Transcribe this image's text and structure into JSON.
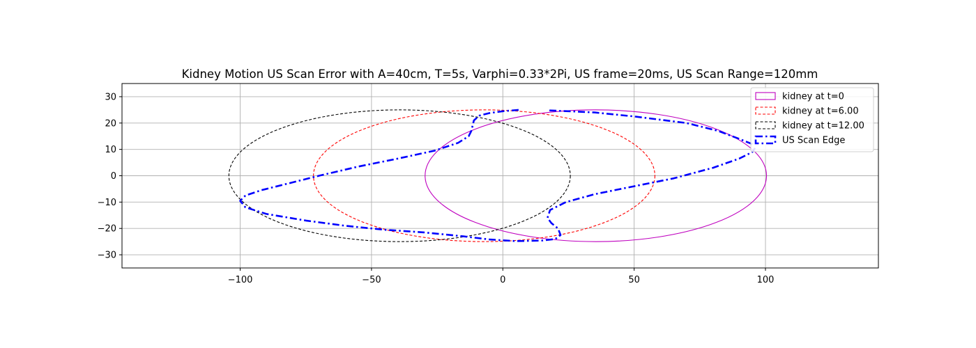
{
  "chart_data": {
    "type": "line",
    "title": "Kidney Motion US Scan Error with A=40cm, T=5s, Varphi=0.33*2Pi, US frame=20ms, US Scan Range=120mm",
    "xlabel": "",
    "ylabel": "",
    "xlim": [
      -145,
      143
    ],
    "ylim": [
      -35,
      35
    ],
    "xticks": [
      -100,
      -50,
      0,
      50,
      100
    ],
    "yticks": [
      -30,
      -20,
      -10,
      0,
      10,
      20,
      30
    ],
    "grid": true,
    "legend_position": "upper-right",
    "ellipses": [
      {
        "name": "kidney at t=0",
        "cx": 35.4,
        "cy": 0,
        "rx": 65,
        "ry": 25,
        "color": "#bf00bf",
        "style": "solid"
      },
      {
        "name": "kidney at t=6.00",
        "cx": -7.1,
        "cy": 0,
        "rx": 65,
        "ry": 25,
        "color": "#ff0000",
        "style": "dashed"
      },
      {
        "name": "kidney at t=12.00",
        "cx": -39.3,
        "cy": 0,
        "rx": 65,
        "ry": 25,
        "color": "#000000",
        "style": "dashed"
      }
    ],
    "scan_edge": {
      "name": "US Scan Edge",
      "color": "#0000ff",
      "style": "dashdot",
      "segments": [
        [
          [
            95,
            12
          ],
          [
            90,
            14
          ],
          [
            82,
            17
          ],
          [
            70,
            20
          ],
          [
            50,
            22.5
          ],
          [
            35,
            24
          ],
          [
            25,
            24.5
          ],
          [
            17,
            24.8
          ]
        ],
        [
          [
            6,
            25
          ],
          [
            0,
            24.5
          ],
          [
            -5,
            23.8
          ],
          [
            -9,
            22.8
          ],
          [
            -11,
            21
          ],
          [
            -11.5,
            19
          ],
          [
            -12,
            17
          ],
          [
            -13,
            15
          ],
          [
            -17,
            12.5
          ],
          [
            -26,
            9.5
          ],
          [
            -40,
            6.5
          ],
          [
            -55,
            3.5
          ],
          [
            -70,
            0
          ],
          [
            -82,
            -3
          ],
          [
            -92,
            -5.5
          ],
          [
            -98,
            -7.5
          ],
          [
            -100,
            -9.5
          ],
          [
            -98,
            -12
          ],
          [
            -90,
            -14.5
          ],
          [
            -75,
            -17
          ],
          [
            -60,
            -19
          ],
          [
            -45,
            -20.5
          ],
          [
            -30,
            -21.5
          ],
          [
            -15,
            -23
          ],
          [
            -5,
            -24.2
          ],
          [
            5,
            -24.8
          ],
          [
            15,
            -24.6
          ],
          [
            20,
            -24
          ],
          [
            22,
            -22.5
          ],
          [
            21,
            -20
          ],
          [
            18.5,
            -18
          ],
          [
            17,
            -16
          ],
          [
            18,
            -13
          ],
          [
            24,
            -10
          ],
          [
            35,
            -7
          ],
          [
            50,
            -4
          ],
          [
            65,
            -1
          ],
          [
            80,
            3
          ],
          [
            90,
            6.5
          ],
          [
            95,
            9
          ],
          [
            96,
            10.5
          ]
        ]
      ]
    }
  }
}
